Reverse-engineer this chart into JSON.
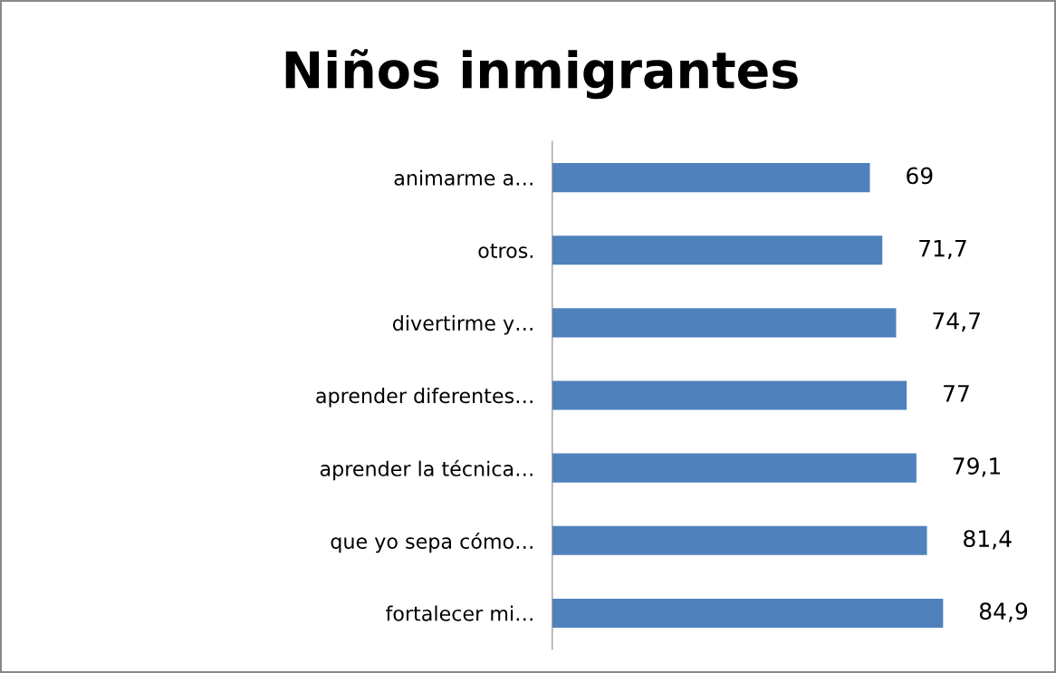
{
  "chart_data": {
    "type": "bar",
    "orientation": "horizontal",
    "title": "Niños inmigrantes",
    "categories": [
      "animarme a…",
      "otros.",
      "divertirme y…",
      "aprender diferentes…",
      "aprender la técnica…",
      "que yo sepa cómo…",
      "fortalecer mi…"
    ],
    "values": [
      69,
      71.7,
      74.7,
      77,
      79.1,
      81.4,
      84.9
    ],
    "value_labels": [
      "69",
      "71,7",
      "74,7",
      "77",
      "79,1",
      "81,4",
      "84,9"
    ],
    "color": "#4f81bd",
    "grid": false,
    "legend": false
  }
}
